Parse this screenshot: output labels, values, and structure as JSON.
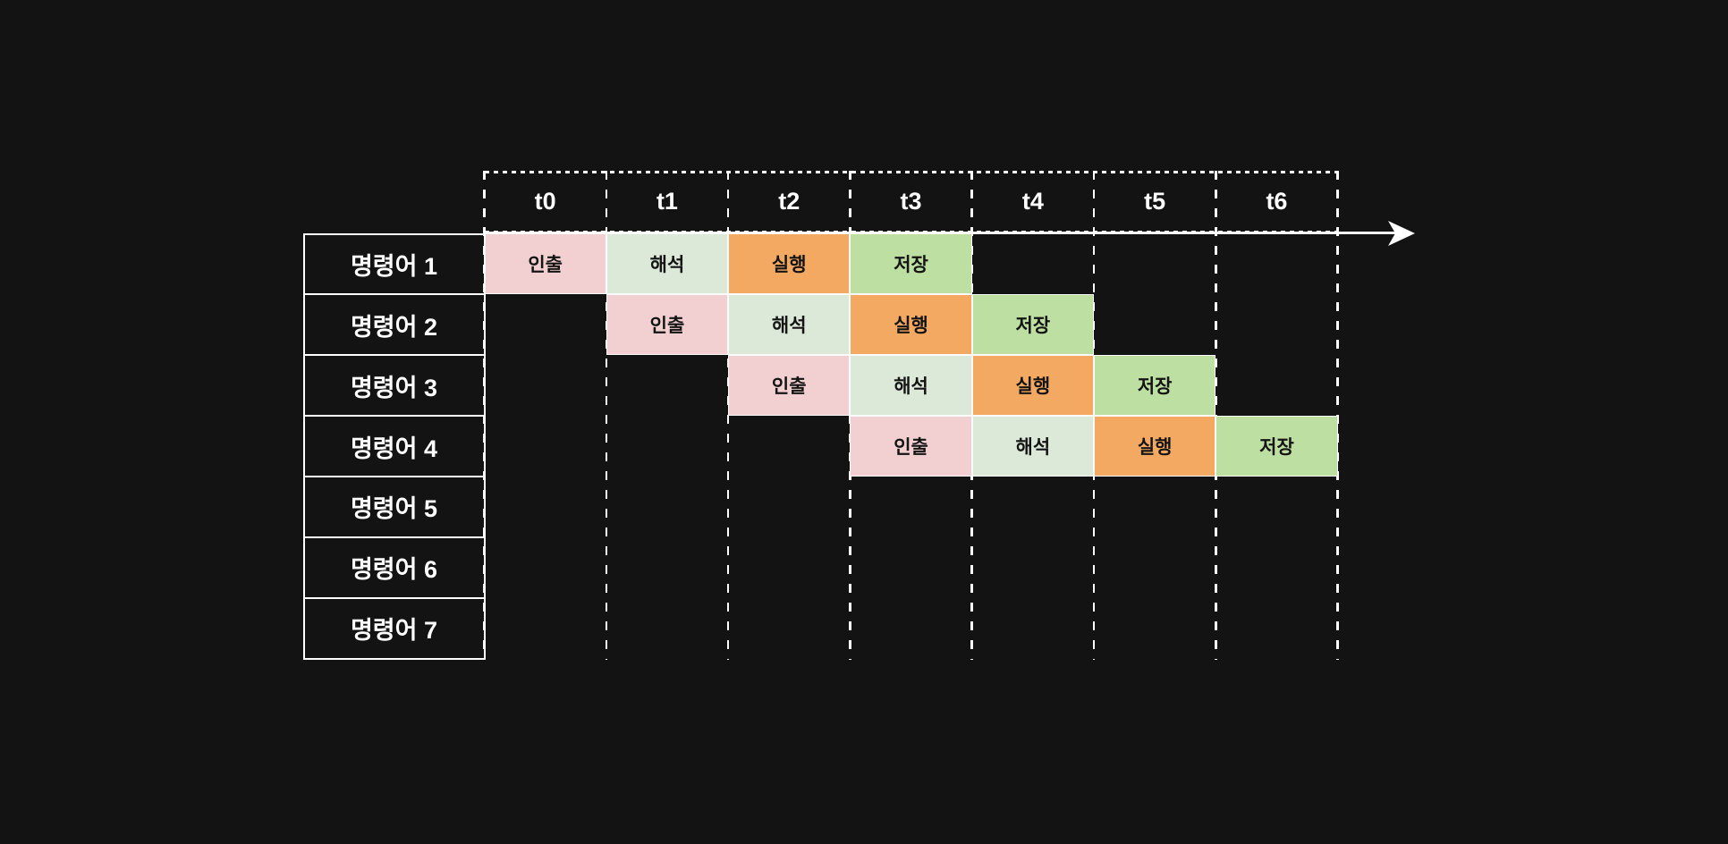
{
  "canvas": {
    "background": "#131313"
  },
  "diagram": {
    "kind": "instruction-pipelining-timing-diagram",
    "time_axis": {
      "ticks": [
        "t0",
        "t1",
        "t2",
        "t3",
        "t4",
        "t5",
        "t6"
      ],
      "has_arrow": true
    },
    "instructions": [
      "명령어 1",
      "명령어 2",
      "명령어 3",
      "명령어 4",
      "명령어 5",
      "명령어 6",
      "명령어 7"
    ],
    "stages": [
      {
        "id": "fetch",
        "label": "인출",
        "color": "#f2d0d2"
      },
      {
        "id": "decode",
        "label": "해석",
        "color": "#dce8d8"
      },
      {
        "id": "execute",
        "label": "실행",
        "color": "#f4a963"
      },
      {
        "id": "store",
        "label": "저장",
        "color": "#bedfa2"
      }
    ],
    "schedule": [
      {
        "instruction": "명령어 1",
        "start": 0,
        "stages": [
          "fetch",
          "decode",
          "execute",
          "store"
        ]
      },
      {
        "instruction": "명령어 2",
        "start": 1,
        "stages": [
          "fetch",
          "decode",
          "execute",
          "store"
        ]
      },
      {
        "instruction": "명령어 3",
        "start": 2,
        "stages": [
          "fetch",
          "decode",
          "execute",
          "store"
        ]
      },
      {
        "instruction": "명령어 4",
        "start": 3,
        "stages": [
          "fetch",
          "decode",
          "execute",
          "store"
        ]
      },
      {
        "instruction": "명령어 5",
        "start": null,
        "stages": []
      },
      {
        "instruction": "명령어 6",
        "start": null,
        "stages": []
      },
      {
        "instruction": "명령어 7",
        "start": null,
        "stages": []
      }
    ],
    "colors": {
      "line": "#ffffff",
      "label_text": "#ffffff",
      "cell_text": "#141414"
    }
  }
}
